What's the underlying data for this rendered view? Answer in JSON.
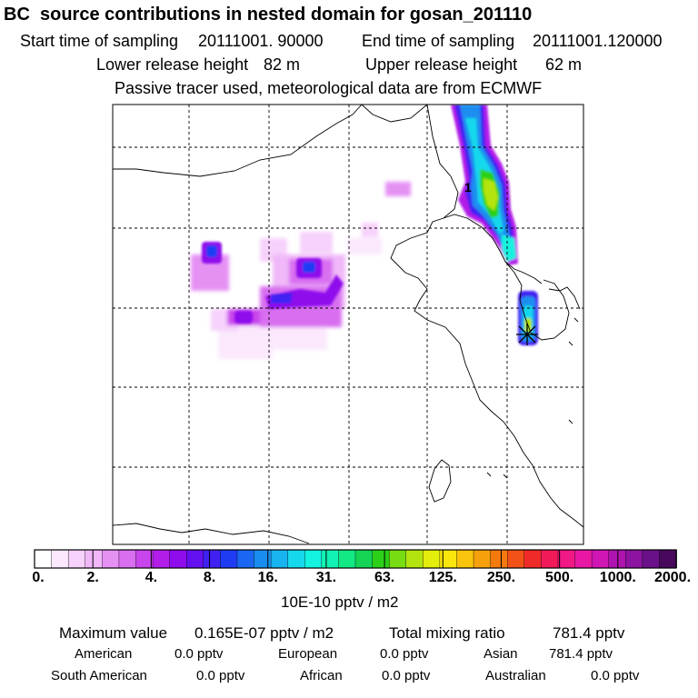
{
  "title": "BC  source contributions in nested domain for gosan_201110",
  "sampling": {
    "start_label": "Start time of sampling",
    "start_value": "20111001. 90000",
    "end_label": "End time of sampling",
    "end_value": "20111001.120000"
  },
  "release": {
    "lower_label": "Lower release height",
    "lower_value": "82 m",
    "upper_label": "Upper release height",
    "upper_value": "62 m"
  },
  "tracer_note": "Passive tracer used, meteorological data are from ECMWF",
  "map": {
    "contour_label": "1",
    "receptor_marker": "gosan-receptor-star"
  },
  "colorbar": {
    "ticks": [
      "0.",
      "2.",
      "4.",
      "8.",
      "16.",
      "31.",
      "63.",
      "125.",
      "250.",
      "500.",
      "1000.",
      "2000."
    ],
    "unit": "10E-10 pptv / m2",
    "colors": [
      "#ffffff",
      "#fbe8fd",
      "#f6d1fb",
      "#f0b8f8",
      "#e591f4",
      "#d86ef0",
      "#c844ec",
      "#b21ee8",
      "#8f0cec",
      "#6410f0",
      "#3f22f2",
      "#1f3cf4",
      "#1a68f2",
      "#1a8ef0",
      "#18b4f0",
      "#16d8ec",
      "#14f2e0",
      "#12f2b4",
      "#12e884",
      "#14d456",
      "#2cd018",
      "#78dc12",
      "#b4e410",
      "#e4ee0c",
      "#fae60c",
      "#f8c40c",
      "#f6a00c",
      "#f47a0e",
      "#f25218",
      "#f02a28",
      "#f01a58",
      "#f01884",
      "#e818a4",
      "#d016b4",
      "#b014b0",
      "#8c14a0",
      "#6a1088",
      "#48085c"
    ]
  },
  "summary": {
    "max_label": "Maximum value",
    "max_value": "0.165E-07 pptv / m2",
    "total_label": "Total mixing ratio",
    "total_value": "781.4 pptv"
  },
  "regions": [
    {
      "name": "American",
      "value": "0.0 pptv"
    },
    {
      "name": "European",
      "value": "0.0 pptv"
    },
    {
      "name": "Asian",
      "value": "781.4 pptv"
    },
    {
      "name": "South American",
      "value": "0.0 pptv"
    },
    {
      "name": "African",
      "value": "0.0 pptv"
    },
    {
      "name": "Australian",
      "value": "0.0 pptv"
    }
  ]
}
